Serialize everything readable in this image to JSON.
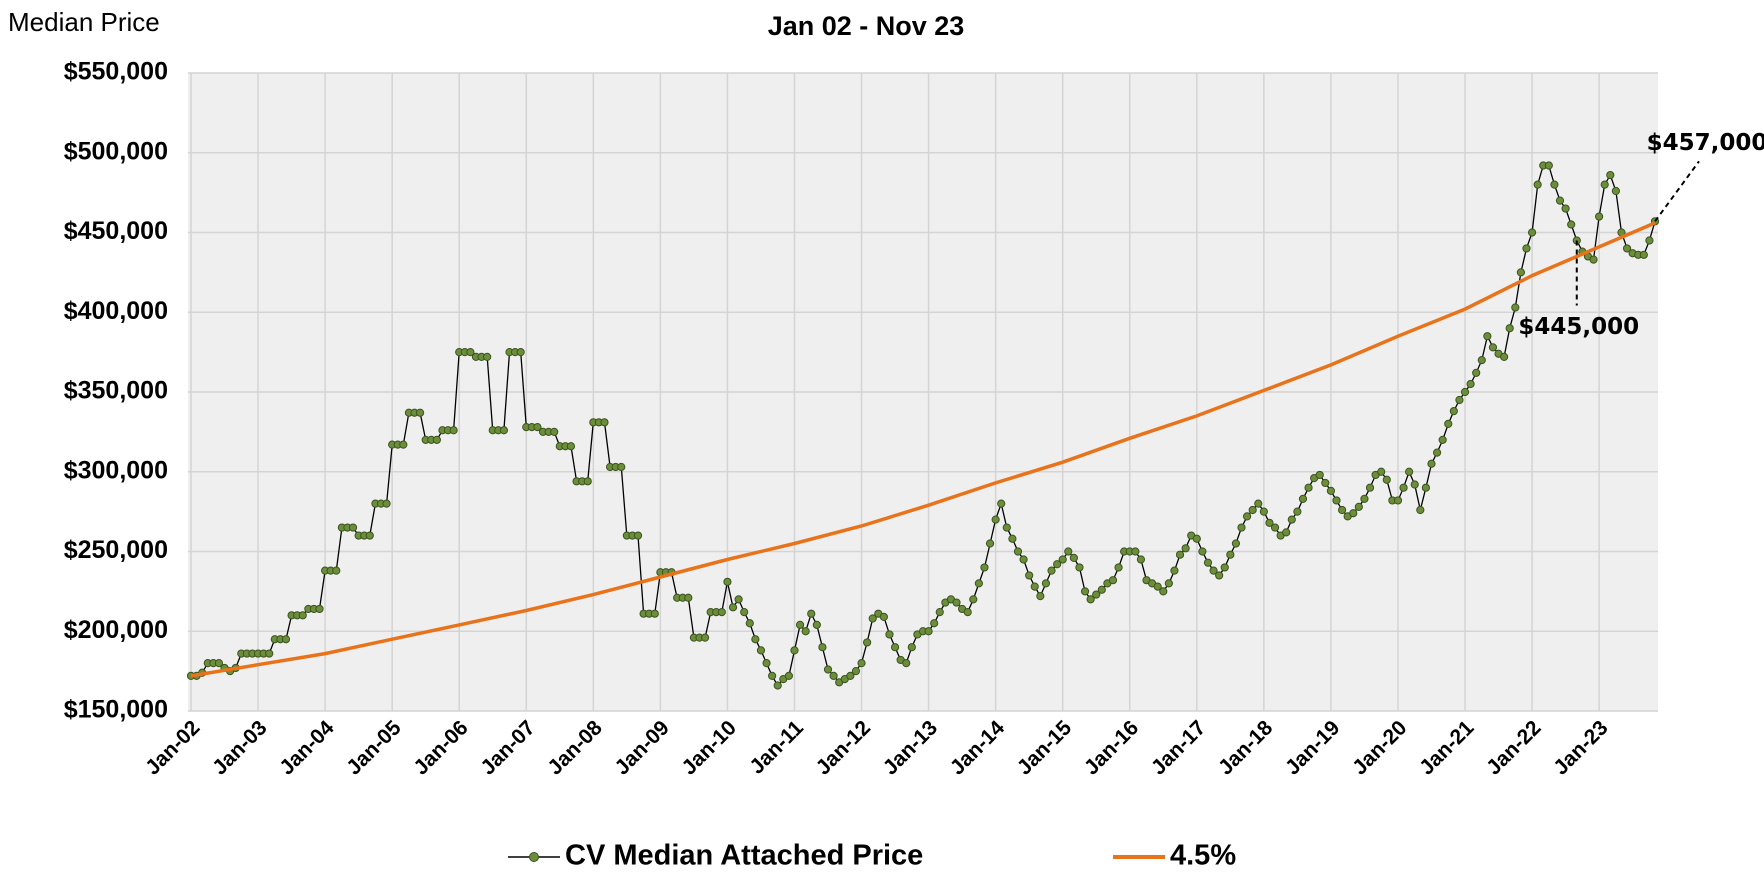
{
  "chart_data": {
    "type": "line",
    "title": "Jan 02 - Nov 23",
    "y_label": "Median Price",
    "categories": [
      "Jan-02",
      null,
      null,
      null,
      null,
      null,
      null,
      null,
      null,
      null,
      null,
      null,
      "Jan-03",
      null,
      null,
      null,
      null,
      null,
      null,
      null,
      null,
      null,
      null,
      null,
      "Jan-04",
      null,
      null,
      null,
      null,
      null,
      null,
      null,
      null,
      null,
      null,
      null,
      "Jan-05",
      null,
      null,
      null,
      null,
      null,
      null,
      null,
      null,
      null,
      null,
      null,
      "Jan-06",
      null,
      null,
      null,
      null,
      null,
      null,
      null,
      null,
      null,
      null,
      null,
      "Jan-07",
      null,
      null,
      null,
      null,
      null,
      null,
      null,
      null,
      null,
      null,
      null,
      "Jan-08",
      null,
      null,
      null,
      null,
      null,
      null,
      null,
      null,
      null,
      null,
      null,
      "Jan-09",
      null,
      null,
      null,
      null,
      null,
      null,
      null,
      null,
      null,
      null,
      null,
      "Jan-10",
      null,
      null,
      null,
      null,
      null,
      null,
      null,
      null,
      null,
      null,
      null,
      "Jan-11",
      null,
      null,
      null,
      null,
      null,
      null,
      null,
      null,
      null,
      null,
      null,
      "Jan-12",
      null,
      null,
      null,
      null,
      null,
      null,
      null,
      null,
      null,
      null,
      null,
      "Jan-13",
      null,
      null,
      null,
      null,
      null,
      null,
      null,
      null,
      null,
      null,
      null,
      "Jan-14",
      null,
      null,
      null,
      null,
      null,
      null,
      null,
      null,
      null,
      null,
      null,
      "Jan-15",
      null,
      null,
      null,
      null,
      null,
      null,
      null,
      null,
      null,
      null,
      null,
      "Jan-16",
      null,
      null,
      null,
      null,
      null,
      null,
      null,
      null,
      null,
      null,
      null,
      "Jan-17",
      null,
      null,
      null,
      null,
      null,
      null,
      null,
      null,
      null,
      null,
      null,
      "Jan-18",
      null,
      null,
      null,
      null,
      null,
      null,
      null,
      null,
      null,
      null,
      null,
      "Jan-19",
      null,
      null,
      null,
      null,
      null,
      null,
      null,
      null,
      null,
      null,
      null,
      "Jan-20",
      null,
      null,
      null,
      null,
      null,
      null,
      null,
      null,
      null,
      null,
      null,
      "Jan-21",
      null,
      null,
      null,
      null,
      null,
      null,
      null,
      null,
      null,
      null,
      null,
      "Jan-22",
      null,
      null,
      null,
      null,
      null,
      null,
      null,
      null,
      null,
      null,
      null,
      "Jan-23",
      null,
      null,
      null,
      null,
      null,
      null,
      null,
      null,
      null,
      null
    ],
    "series": [
      {
        "name": "CV Median Attached Price",
        "color": "#6b8e3a",
        "line_color": "#000000",
        "values": [
          172000,
          172000,
          174000,
          180000,
          180000,
          180000,
          177000,
          175000,
          177000,
          186000,
          186000,
          186000,
          186000,
          186000,
          186000,
          195000,
          195000,
          195000,
          210000,
          210000,
          210000,
          214000,
          214000,
          214000,
          238000,
          238000,
          238000,
          265000,
          265000,
          265000,
          260000,
          260000,
          260000,
          280000,
          280000,
          280000,
          317000,
          317000,
          317000,
          337000,
          337000,
          337000,
          320000,
          320000,
          320000,
          326000,
          326000,
          326000,
          375000,
          375000,
          375000,
          372000,
          372000,
          372000,
          326000,
          326000,
          326000,
          375000,
          375000,
          375000,
          328000,
          328000,
          328000,
          325000,
          325000,
          325000,
          316000,
          316000,
          316000,
          294000,
          294000,
          294000,
          331000,
          331000,
          331000,
          303000,
          303000,
          303000,
          260000,
          260000,
          260000,
          211000,
          211000,
          211000,
          237000,
          237000,
          237000,
          221000,
          221000,
          221000,
          196000,
          196000,
          196000,
          212000,
          212000,
          212000,
          231000,
          215000,
          220000,
          212000,
          205000,
          195000,
          188000,
          180000,
          172000,
          166000,
          170000,
          172000,
          188000,
          204000,
          200000,
          211000,
          204000,
          190000,
          176000,
          172000,
          168000,
          170000,
          172000,
          175000,
          180000,
          193000,
          208000,
          211000,
          209000,
          198000,
          190000,
          182000,
          180000,
          190000,
          198000,
          200000,
          200000,
          205000,
          212000,
          218000,
          220000,
          218000,
          214000,
          212000,
          220000,
          230000,
          240000,
          255000,
          270000,
          280000,
          265000,
          258000,
          250000,
          245000,
          235000,
          228000,
          222000,
          230000,
          238000,
          242000,
          245000,
          250000,
          246000,
          240000,
          225000,
          220000,
          223000,
          226000,
          230000,
          232000,
          240000,
          250000,
          250000,
          250000,
          245000,
          232000,
          230000,
          228000,
          225000,
          230000,
          238000,
          248000,
          252000,
          260000,
          258000,
          250000,
          243000,
          238000,
          235000,
          240000,
          248000,
          255000,
          265000,
          272000,
          276000,
          280000,
          275000,
          268000,
          265000,
          260000,
          262000,
          270000,
          275000,
          283000,
          290000,
          296000,
          298000,
          293000,
          288000,
          282000,
          276000,
          272000,
          274000,
          278000,
          283000,
          290000,
          298000,
          300000,
          295000,
          282000,
          282000,
          290000,
          300000,
          292000,
          276000,
          290000,
          305000,
          312000,
          320000,
          330000,
          338000,
          345000,
          350000,
          355000,
          362000,
          370000,
          385000,
          378000,
          374000,
          372000,
          390000,
          403000,
          425000,
          440000,
          450000,
          480000,
          492000,
          492000,
          480000,
          470000,
          465000,
          455000,
          445000,
          438000,
          435000,
          433000,
          460000,
          480000,
          486000,
          476000,
          450000,
          440000,
          437000,
          436000,
          436000,
          445000,
          457000
        ]
      },
      {
        "name": "4.5%",
        "color": "#e8731a",
        "x": [
          0,
          12,
          24,
          36,
          48,
          60,
          72,
          84,
          96,
          108,
          120,
          132,
          144,
          156,
          168,
          180,
          192,
          204,
          216,
          228,
          240,
          252,
          262
        ],
        "values": [
          172000,
          179000,
          186000,
          195000,
          204000,
          213000,
          223000,
          234000,
          245000,
          255000,
          266000,
          279000,
          293000,
          306000,
          321000,
          335000,
          351000,
          367000,
          385000,
          402000,
          423000,
          441000,
          456000
        ]
      }
    ],
    "ylim": [
      150000,
      550000
    ],
    "yticks": [
      {
        "value": 150000,
        "label": "$150,000"
      },
      {
        "value": 200000,
        "label": "$200,000"
      },
      {
        "value": 250000,
        "label": "$250,000"
      },
      {
        "value": 300000,
        "label": "$300,000"
      },
      {
        "value": 350000,
        "label": "$350,000"
      },
      {
        "value": 400000,
        "label": "$400,000"
      },
      {
        "value": 450000,
        "label": "$450,000"
      },
      {
        "value": 500000,
        "label": "$500,000"
      },
      {
        "value": 550000,
        "label": "$550,000"
      }
    ],
    "grid": true,
    "legend": "bottom",
    "annotations": [
      {
        "label": "$457,000",
        "value": 457000
      },
      {
        "label": "$445,000",
        "value": 445000
      }
    ]
  }
}
